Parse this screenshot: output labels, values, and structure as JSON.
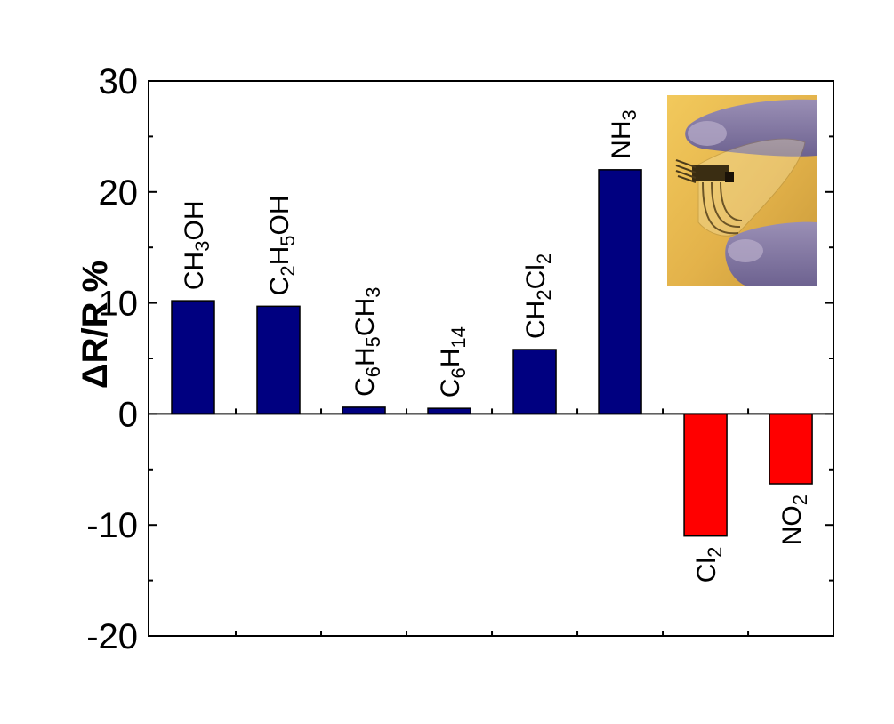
{
  "chart_data": {
    "type": "bar",
    "title": "",
    "xlabel": "",
    "ylabel": "ΔR/R %",
    "ylim": [
      -20,
      30
    ],
    "yticks": [
      -20,
      -10,
      0,
      10,
      20,
      30
    ],
    "grid": false,
    "categories": [
      [
        {
          "t": "CH"
        },
        {
          "t": "3",
          "s": 1
        },
        {
          "t": "OH"
        }
      ],
      [
        {
          "t": "C"
        },
        {
          "t": "2",
          "s": 1
        },
        {
          "t": "H"
        },
        {
          "t": "5",
          "s": 1
        },
        {
          "t": "OH"
        }
      ],
      [
        {
          "t": "C"
        },
        {
          "t": "6",
          "s": 1
        },
        {
          "t": "H"
        },
        {
          "t": "5",
          "s": 1
        },
        {
          "t": "CH"
        },
        {
          "t": "3",
          "s": 1
        }
      ],
      [
        {
          "t": "C"
        },
        {
          "t": "6",
          "s": 1
        },
        {
          "t": "H"
        },
        {
          "t": "14",
          "s": 1
        }
      ],
      [
        {
          "t": "CH"
        },
        {
          "t": "2",
          "s": 1
        },
        {
          "t": "Cl"
        },
        {
          "t": "2",
          "s": 1
        }
      ],
      [
        {
          "t": "NH"
        },
        {
          "t": "3",
          "s": 1
        }
      ],
      [
        {
          "t": "Cl"
        },
        {
          "t": "2",
          "s": 1
        }
      ],
      [
        {
          "t": "NO"
        },
        {
          "t": "2",
          "s": 1
        }
      ]
    ],
    "values": [
      10.2,
      9.7,
      0.6,
      0.5,
      5.8,
      22.0,
      -11.0,
      -6.3
    ],
    "colors": {
      "positive": "#000080",
      "negative": "#ff0000",
      "axis": "#000000"
    }
  },
  "inset": {
    "icon": "flexible-sensor-photo"
  }
}
